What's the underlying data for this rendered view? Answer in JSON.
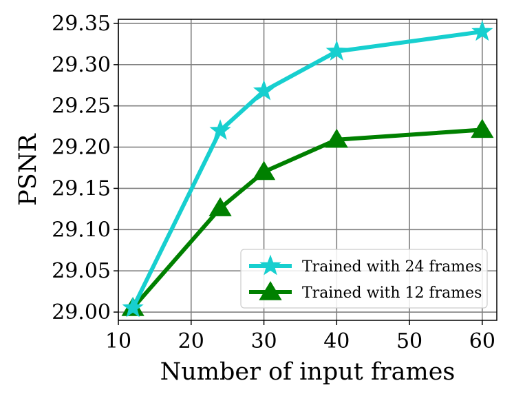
{
  "chart_data": {
    "type": "line",
    "title": "",
    "xlabel": "Number of input frames",
    "ylabel": "PSNR",
    "xlim": [
      10,
      62
    ],
    "ylim": [
      28.99,
      29.355
    ],
    "x_ticks": [
      10,
      20,
      30,
      40,
      50,
      60
    ],
    "x_tick_labels": [
      "10",
      "20",
      "30",
      "40",
      "50",
      "60"
    ],
    "y_ticks": [
      29.0,
      29.05,
      29.1,
      29.15,
      29.2,
      29.25,
      29.3,
      29.35
    ],
    "y_tick_labels": [
      "29.00",
      "29.05",
      "29.10",
      "29.15",
      "29.20",
      "29.25",
      "29.30",
      "29.35"
    ],
    "grid": true,
    "legend_position": "bottom-right",
    "x": [
      12,
      24,
      30,
      40,
      60
    ],
    "series": [
      {
        "name": "Trained with 24 frames",
        "values": [
          29.005,
          29.22,
          29.268,
          29.316,
          29.34
        ],
        "color": "#17cfcf",
        "marker": "star"
      },
      {
        "name": "Trained with 12 frames",
        "values": [
          29.005,
          29.126,
          29.17,
          29.209,
          29.221
        ],
        "color": "#008000",
        "marker": "triangle"
      }
    ]
  }
}
